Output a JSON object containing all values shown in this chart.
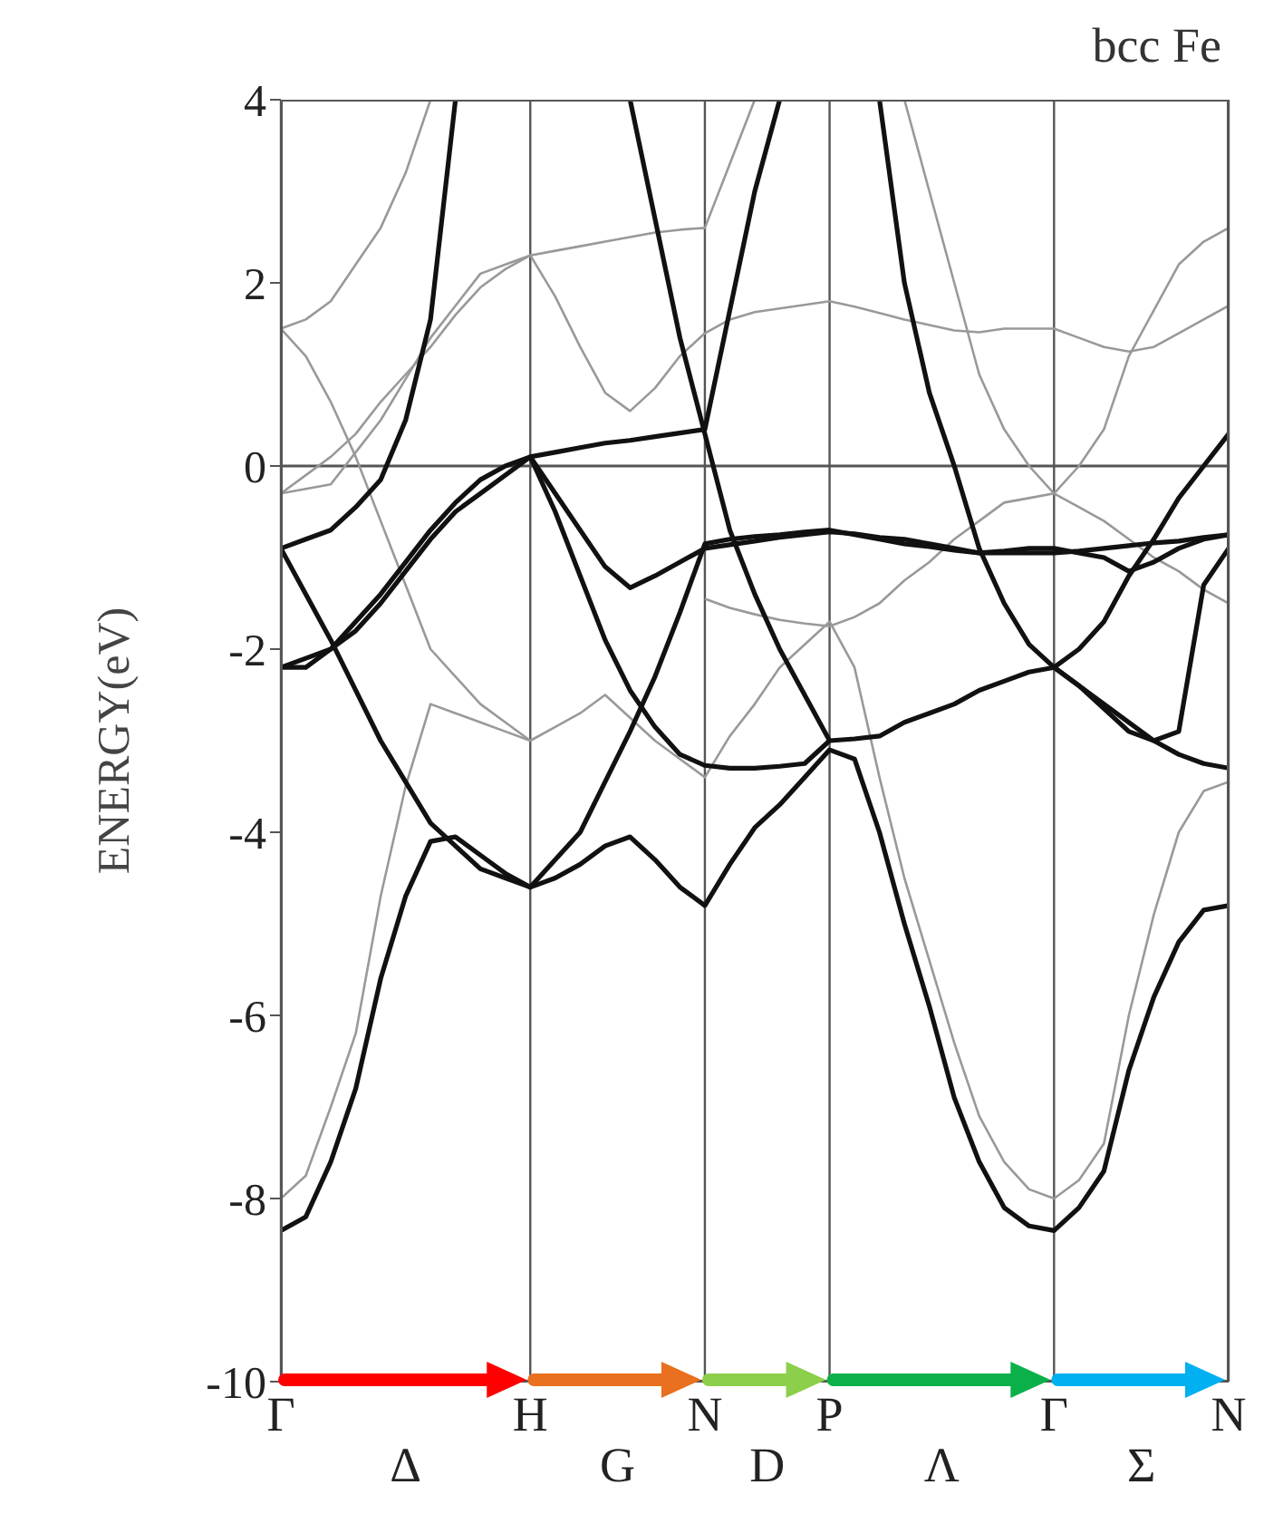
{
  "chart_data": {
    "type": "line",
    "title": "bcc Fe",
    "ylabel": "ENERGY(eV)",
    "categories": [
      "Γ",
      null,
      null,
      null,
      null,
      null,
      null,
      null,
      null,
      null,
      "H",
      null,
      null,
      null,
      null,
      null,
      null,
      "N",
      null,
      null,
      null,
      null,
      "P",
      null,
      null,
      null,
      null,
      null,
      null,
      null,
      null,
      "Γ",
      null,
      null,
      null,
      null,
      null,
      null,
      "N"
    ],
    "ylim": [
      -10,
      4
    ],
    "yticks": [
      -10,
      -8,
      -6,
      -4,
      -2,
      0,
      2,
      4
    ],
    "grid": "x",
    "marker": "none",
    "line_style": "solid",
    "ref_lines": [
      {
        "axis": "y",
        "value": 0,
        "color": "#555555"
      }
    ],
    "annotations": [
      "Δ",
      "G",
      "D",
      "Λ",
      "Σ"
    ],
    "series": [
      {
        "color": "#999999",
        "values": [
          -8.0,
          -7.75,
          -7.0,
          -6.2,
          -4.7,
          -3.5,
          -2.6,
          -2.7,
          -2.8,
          -2.9,
          -3.0,
          -2.85,
          -2.7,
          -2.5,
          -2.75,
          -3.0,
          -3.2,
          -3.4,
          -2.95,
          -2.6,
          -2.2,
          -1.95,
          -1.7,
          -2.2,
          -3.4,
          -4.5,
          -5.4,
          -6.3,
          -7.1,
          -7.6,
          -7.9,
          -8.0,
          -7.8,
          -7.4,
          -6.0,
          -4.9,
          -4.0,
          -3.55,
          -3.45
        ]
      },
      {
        "color": "#999999",
        "values": [
          1.5,
          1.2,
          0.7,
          0.1,
          -0.6,
          -1.3,
          -2.0,
          -2.3,
          -2.6,
          -2.8,
          -3.0,
          null,
          null,
          null,
          null,
          null,
          null,
          null,
          null,
          null,
          null,
          null,
          null,
          null,
          null,
          null,
          null,
          null,
          null,
          null,
          null,
          null,
          null,
          null,
          null,
          null,
          null,
          null,
          null
        ]
      },
      {
        "color": "#999999",
        "values": [
          1.5,
          1.6,
          1.8,
          2.2,
          2.6,
          3.2,
          4,
          null,
          null,
          null,
          null,
          null,
          null,
          null,
          null,
          null,
          null,
          null,
          null,
          null,
          null,
          null,
          null,
          null,
          null,
          null,
          null,
          null,
          null,
          null,
          null,
          null,
          null,
          null,
          null,
          null,
          null,
          null,
          null
        ]
      },
      {
        "color": "#999999",
        "values": [
          -0.3,
          -0.25,
          -0.2,
          0.15,
          0.5,
          0.95,
          1.4,
          1.75,
          2.1,
          2.2,
          2.3,
          2.35,
          2.4,
          2.45,
          2.5,
          2.55,
          2.58,
          2.6,
          3.3,
          4,
          null,
          null,
          null,
          null,
          null,
          null,
          null,
          null,
          null,
          null,
          null,
          null,
          null,
          null,
          null,
          null,
          null,
          null,
          null
        ]
      },
      {
        "color": "#999999",
        "values": [
          -0.3,
          -0.1,
          0.1,
          0.35,
          0.7,
          1.0,
          1.3,
          1.65,
          1.95,
          2.15,
          2.3,
          1.85,
          1.3,
          0.8,
          0.6,
          0.85,
          1.2,
          1.45,
          1.6,
          1.68,
          1.72,
          1.76,
          1.8,
          1.74,
          1.67,
          1.6,
          1.54,
          1.48,
          1.46,
          1.5,
          1.5,
          1.5,
          1.4,
          1.3,
          1.25,
          1.3,
          1.45,
          1.6,
          1.75
        ]
      },
      {
        "color": "#999999",
        "values": [
          null,
          null,
          null,
          null,
          null,
          null,
          null,
          null,
          null,
          null,
          null,
          null,
          null,
          null,
          null,
          null,
          null,
          null,
          null,
          null,
          null,
          null,
          null,
          null,
          null,
          4,
          3.0,
          2.0,
          1.0,
          0.4,
          0.0,
          -0.3,
          0.0,
          0.4,
          1.2,
          1.7,
          2.2,
          2.45,
          2.6
        ]
      },
      {
        "color": "#999999",
        "values": [
          null,
          null,
          null,
          null,
          null,
          null,
          null,
          null,
          null,
          null,
          null,
          null,
          null,
          null,
          null,
          null,
          null,
          -1.45,
          -1.55,
          -1.62,
          -1.68,
          -1.72,
          -1.75,
          -1.65,
          -1.5,
          -1.25,
          -1.05,
          -0.8,
          -0.6,
          -0.4,
          -0.35,
          -0.3,
          -0.45,
          -0.6,
          -0.8,
          -1.0,
          -1.15,
          -1.35,
          -1.5
        ]
      },
      {
        "color": "#111111",
        "values": [
          -8.35,
          -8.2,
          -7.6,
          -6.8,
          -5.6,
          -4.7,
          -4.1,
          -4.05,
          -4.25,
          -4.45,
          -4.6,
          -4.5,
          -4.35,
          -4.15,
          -4.05,
          -4.3,
          -4.6,
          -4.8,
          -4.35,
          -3.95,
          -3.7,
          -3.4,
          -3.1,
          -3.2,
          -4.0,
          -5.0,
          -5.9,
          -6.9,
          -7.6,
          -8.1,
          -8.3,
          -8.35,
          -8.1,
          -7.7,
          -6.6,
          -5.8,
          -5.2,
          -4.85,
          -4.8
        ]
      },
      {
        "color": "#111111",
        "values": [
          -0.9,
          -0.8,
          -0.7,
          -0.45,
          -0.15,
          0.5,
          1.6,
          4,
          null,
          null,
          null,
          null,
          null,
          null,
          null,
          null,
          null,
          null,
          null,
          null,
          null,
          null,
          null,
          null,
          null,
          null,
          null,
          null,
          null,
          null,
          null,
          null,
          null,
          null,
          null,
          null,
          null,
          null,
          null
        ]
      },
      {
        "color": "#111111",
        "values": [
          null,
          null,
          null,
          null,
          null,
          null,
          null,
          null,
          null,
          null,
          null,
          null,
          null,
          null,
          4,
          2.7,
          1.4,
          0.35,
          -0.7,
          -1.4,
          -2.0,
          -2.5,
          -3.0,
          null,
          null,
          null,
          null,
          null,
          null,
          null,
          null,
          null,
          null,
          null,
          null,
          null,
          null,
          null,
          null
        ]
      },
      {
        "color": "#111111",
        "values": [
          -0.9,
          -1.4,
          -1.9,
          -2.45,
          -3.0,
          -3.45,
          -3.9,
          -4.15,
          -4.4,
          -4.5,
          -4.6,
          -4.3,
          -4.0,
          -3.45,
          -2.9,
          -2.3,
          -1.6,
          -0.85,
          -0.8,
          -0.77,
          -0.75,
          -0.72,
          -0.7,
          -0.75,
          -0.8,
          -0.85,
          -0.88,
          -0.92,
          -0.95,
          -0.93,
          -0.9,
          -0.9,
          -0.95,
          -1.0,
          -1.15,
          -1.05,
          -0.9,
          -0.8,
          -0.75
        ]
      },
      {
        "color": "#111111",
        "values": [
          -2.2,
          -2.1,
          -2.0,
          -1.7,
          -1.4,
          -1.05,
          -0.7,
          -0.4,
          -0.15,
          0.0,
          0.1,
          0.15,
          0.2,
          0.25,
          0.28,
          0.32,
          0.36,
          0.4,
          1.7,
          3.0,
          4,
          null,
          null,
          null,
          null,
          null,
          null,
          null,
          null,
          null,
          null,
          null,
          null,
          null,
          null,
          null,
          null,
          null,
          null
        ]
      },
      {
        "color": "#111111",
        "values": [
          -2.2,
          -2.2,
          -2.0,
          -1.8,
          -1.5,
          -1.15,
          -0.8,
          -0.5,
          -0.3,
          -0.1,
          0.1,
          -0.3,
          -0.7,
          -1.1,
          -1.33,
          -1.2,
          -1.05,
          -0.9,
          -0.86,
          -0.82,
          -0.78,
          -0.75,
          -0.72,
          -0.74,
          -0.78,
          -0.8,
          -0.85,
          -0.9,
          -0.95,
          -0.95,
          -0.95,
          -0.95,
          -0.93,
          -0.9,
          -0.87,
          -0.84,
          -0.82,
          -0.78,
          -0.75
        ]
      },
      {
        "color": "#111111",
        "values": [
          null,
          null,
          null,
          null,
          null,
          null,
          null,
          null,
          null,
          null,
          null,
          null,
          null,
          null,
          null,
          null,
          null,
          null,
          null,
          null,
          null,
          null,
          null,
          null,
          4,
          2.0,
          0.8,
          0.0,
          -0.9,
          -1.5,
          -1.95,
          -2.2,
          -2.0,
          -1.7,
          -1.2,
          -0.8,
          -0.35,
          0.0,
          0.35
        ]
      },
      {
        "color": "#111111",
        "values": [
          null,
          null,
          null,
          null,
          null,
          null,
          null,
          null,
          null,
          null,
          null,
          null,
          null,
          null,
          null,
          null,
          null,
          null,
          null,
          null,
          null,
          null,
          null,
          null,
          null,
          null,
          null,
          null,
          null,
          null,
          null,
          -2.2,
          -2.4,
          -2.65,
          -2.9,
          -3.0,
          -2.9,
          -1.3,
          -0.9
        ]
      },
      {
        "color": "#111111",
        "values": [
          null,
          null,
          null,
          null,
          null,
          null,
          null,
          null,
          null,
          null,
          0.1,
          -0.5,
          -1.2,
          -1.9,
          -2.45,
          -2.85,
          -3.15,
          -3.27,
          -3.3,
          -3.3,
          -3.28,
          -3.25,
          -3.0,
          -2.98,
          -2.95,
          -2.8,
          -2.7,
          -2.6,
          -2.45,
          -2.35,
          -2.25,
          -2.2,
          -2.4,
          -2.6,
          -2.8,
          -3.0,
          -3.15,
          -3.25,
          -3.3
        ]
      }
    ]
  }
}
